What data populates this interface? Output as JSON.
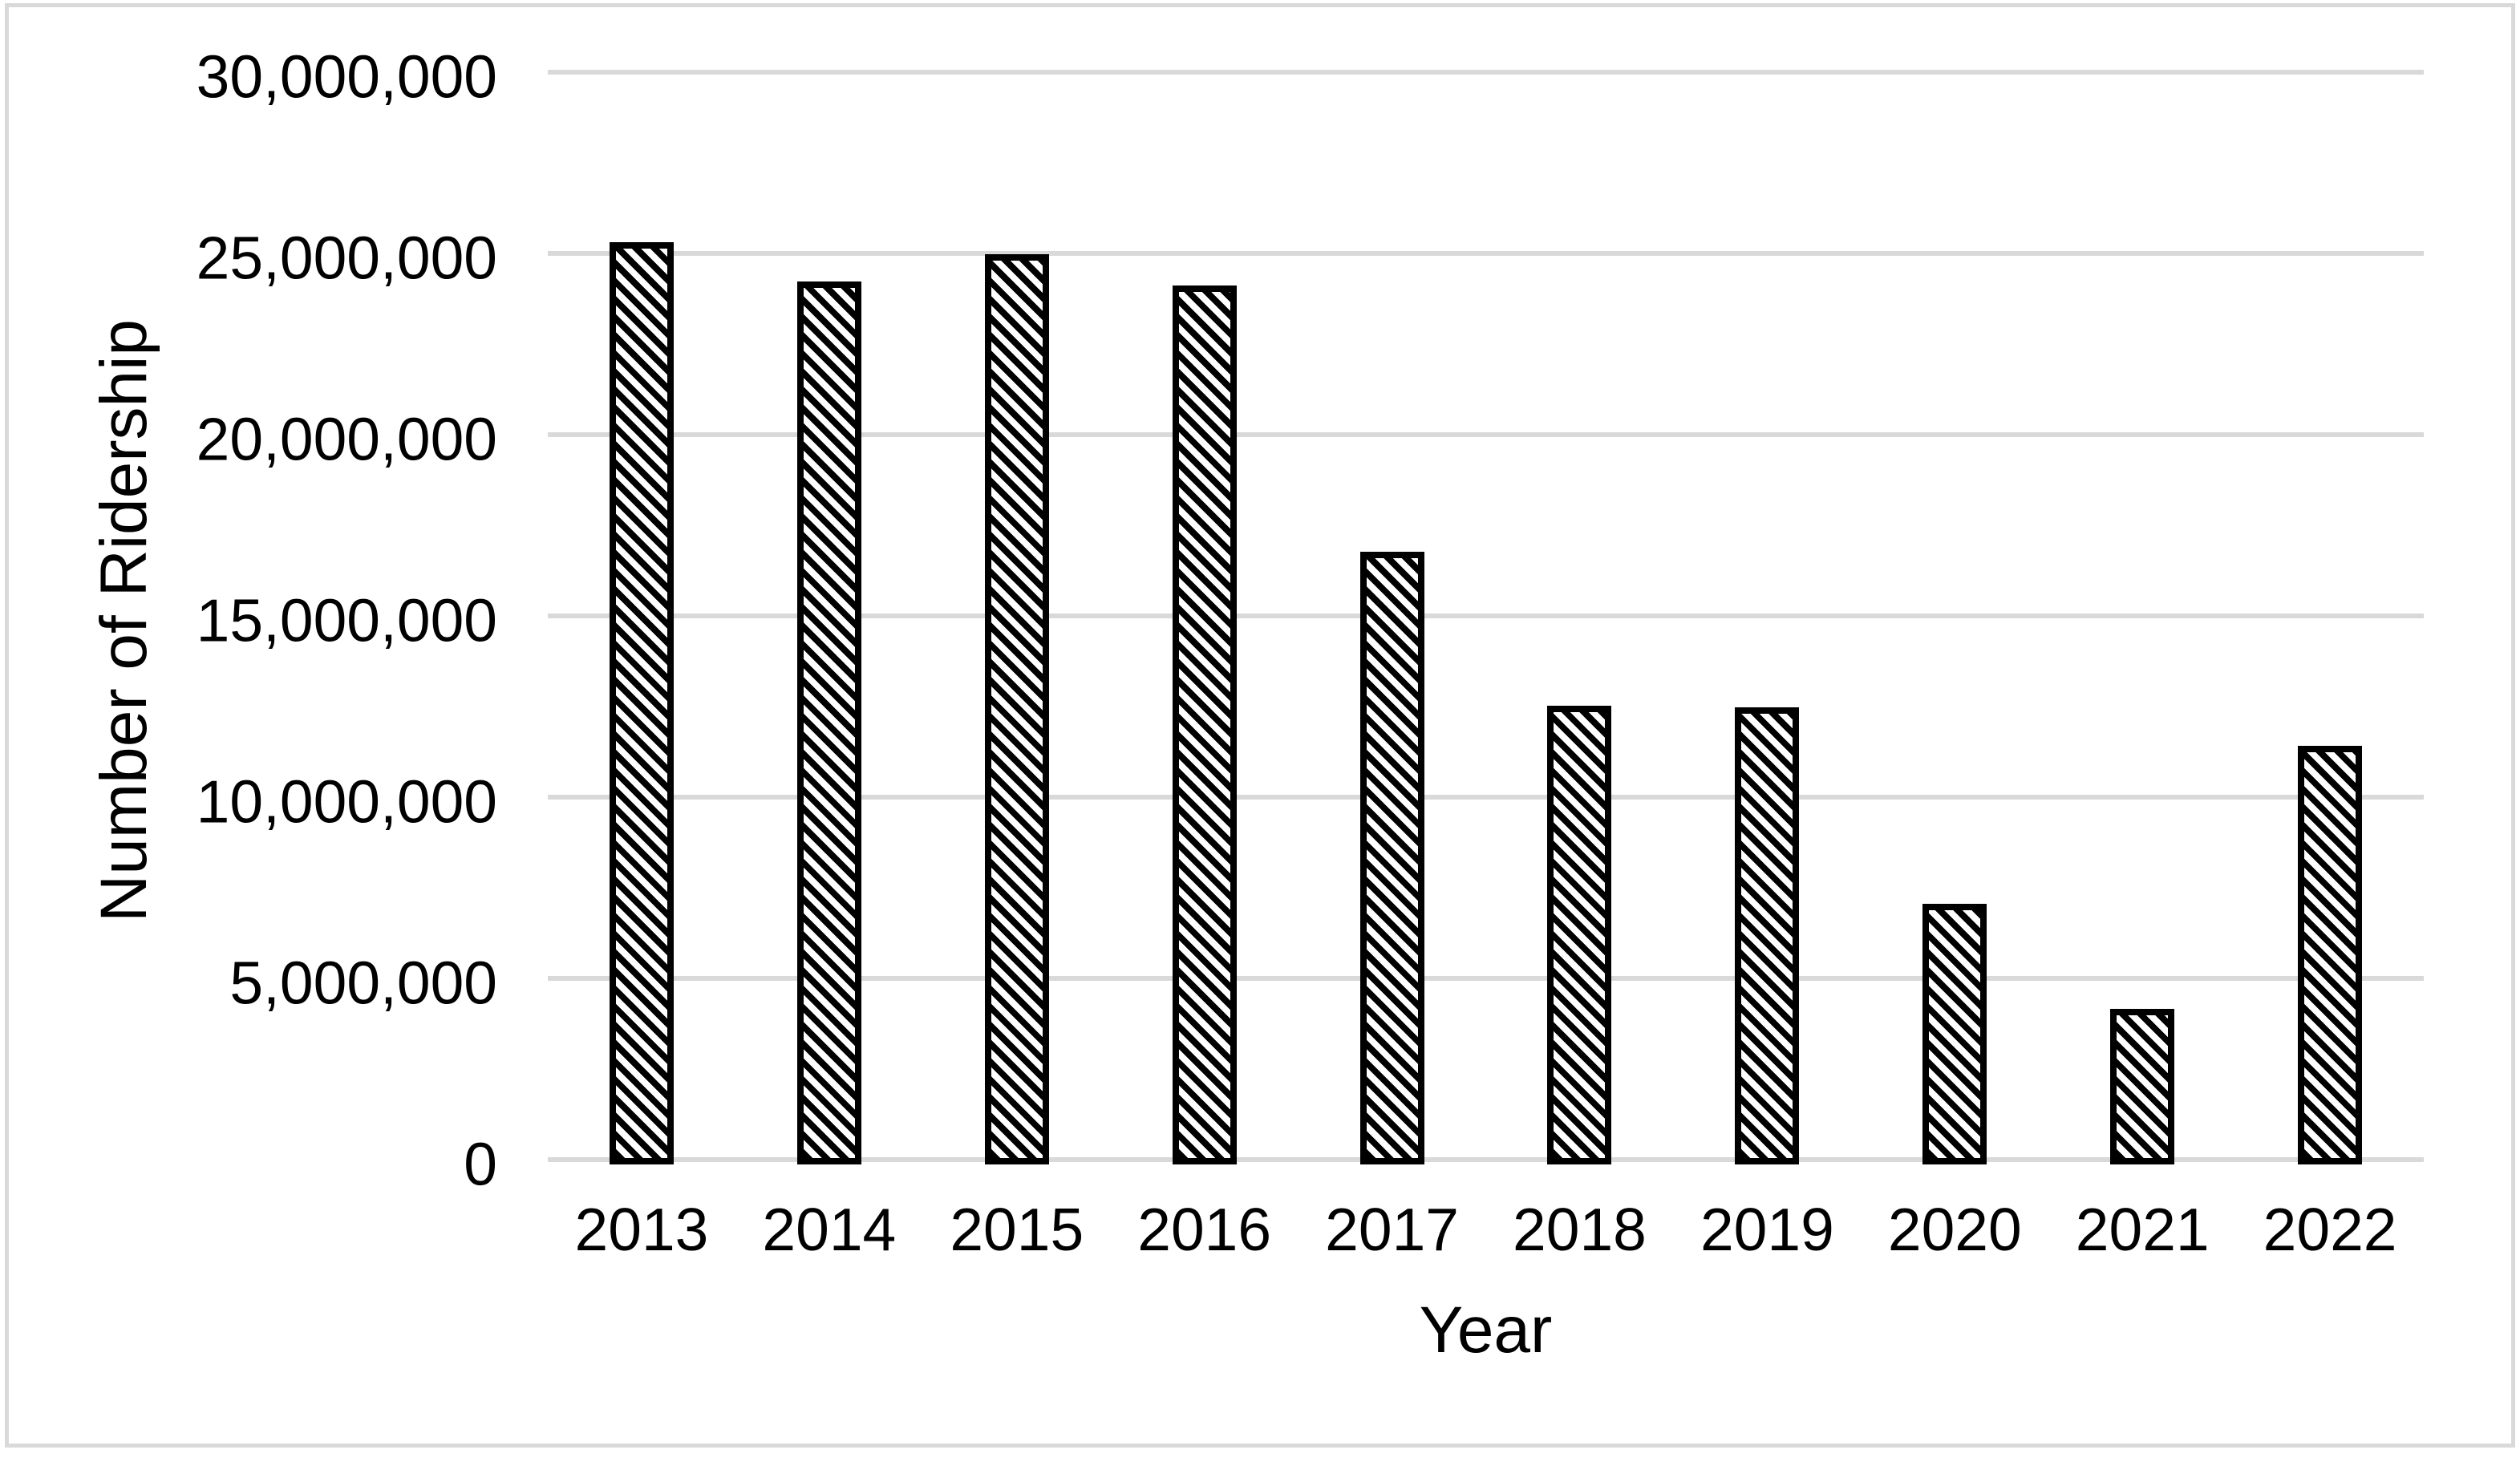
{
  "chart_data": {
    "type": "bar",
    "title": "",
    "xlabel": "Year",
    "ylabel": "Number of Ridership",
    "categories": [
      "2013",
      "2014",
      "2015",
      "2016",
      "2017",
      "2018",
      "2019",
      "2020",
      "2021",
      "2022"
    ],
    "values": [
      25450000,
      24350000,
      25100000,
      24250000,
      16900000,
      12650000,
      12600000,
      7200000,
      4300000,
      11550000
    ],
    "ylim": [
      0,
      30000000
    ],
    "ytick_step": 5000000,
    "ytick_labels": [
      "0",
      "5,000,000",
      "10,000,000",
      "15,000,000",
      "20,000,000",
      "25,000,000",
      "30,000,000"
    ],
    "grid": "horizontal",
    "legend": "none",
    "bar_pattern": "diagonal-hatch",
    "colors": {
      "bar_fill": "#ffffff",
      "bar_stroke": "#000000",
      "gridline": "#d9d9d9",
      "frame": "#d9d9d9",
      "text": "#000000"
    }
  }
}
